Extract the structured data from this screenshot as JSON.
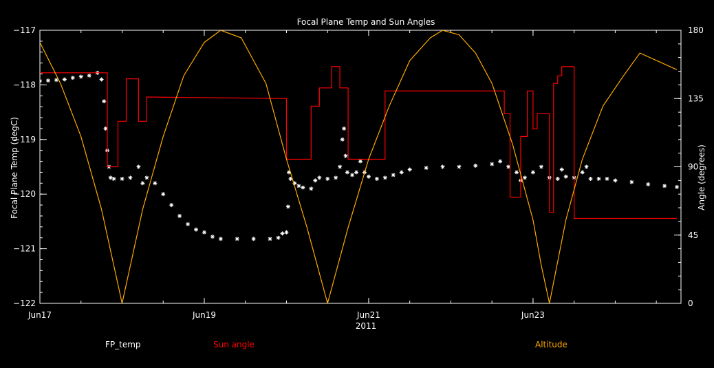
{
  "chart_data": {
    "type": "scatter",
    "title": "Focal Plane Temp and Sun Angles",
    "xlabel": "2011",
    "ylabel": "Focal Plane Temp (degC)",
    "y2label": "Angle (degrees)",
    "xlim_days": [
      17,
      24.8
    ],
    "ylim": [
      -122,
      -117
    ],
    "y2lim": [
      0,
      180
    ],
    "x_ticks": [
      {
        "day": 17,
        "label": "Jun17"
      },
      {
        "day": 19,
        "label": "Jun19"
      },
      {
        "day": 21,
        "label": "Jun21"
      },
      {
        "day": 23,
        "label": "Jun23"
      }
    ],
    "y_ticks": [
      -117,
      -118,
      -119,
      -120,
      -121,
      -122
    ],
    "y2_ticks": [
      180,
      135,
      90,
      45,
      0
    ],
    "colors": {
      "fp_temp": "#ffffff",
      "sun_angle": "#ff0000",
      "altitude": "#ffaa00",
      "axes": "#ffffff"
    },
    "series": [
      {
        "name": "FP_temp",
        "axis": "left",
        "marker": "asterisk",
        "points": [
          [
            17.0,
            -117.93
          ],
          [
            17.1,
            -117.92
          ],
          [
            17.2,
            -117.91
          ],
          [
            17.3,
            -117.9
          ],
          [
            17.4,
            -117.87
          ],
          [
            17.5,
            -117.85
          ],
          [
            17.6,
            -117.83
          ],
          [
            17.7,
            -117.78
          ],
          [
            17.75,
            -117.9
          ],
          [
            17.78,
            -118.3
          ],
          [
            17.8,
            -118.8
          ],
          [
            17.82,
            -119.2
          ],
          [
            17.84,
            -119.5
          ],
          [
            17.86,
            -119.7
          ],
          [
            17.9,
            -119.72
          ],
          [
            18.0,
            -119.72
          ],
          [
            18.1,
            -119.7
          ],
          [
            18.2,
            -119.5
          ],
          [
            18.25,
            -119.8
          ],
          [
            18.3,
            -119.7
          ],
          [
            18.4,
            -119.8
          ],
          [
            18.5,
            -120.0
          ],
          [
            18.6,
            -120.2
          ],
          [
            18.7,
            -120.4
          ],
          [
            18.8,
            -120.55
          ],
          [
            18.9,
            -120.65
          ],
          [
            19.0,
            -120.7
          ],
          [
            19.1,
            -120.78
          ],
          [
            19.2,
            -120.82
          ],
          [
            19.4,
            -120.82
          ],
          [
            19.6,
            -120.82
          ],
          [
            19.8,
            -120.82
          ],
          [
            19.9,
            -120.8
          ],
          [
            19.95,
            -120.72
          ],
          [
            20.0,
            -120.7
          ],
          [
            20.02,
            -120.23
          ],
          [
            20.03,
            -119.6
          ],
          [
            20.05,
            -119.72
          ],
          [
            20.1,
            -119.8
          ],
          [
            20.15,
            -119.85
          ],
          [
            20.2,
            -119.88
          ],
          [
            20.3,
            -119.9
          ],
          [
            20.35,
            -119.75
          ],
          [
            20.4,
            -119.7
          ],
          [
            20.5,
            -119.72
          ],
          [
            20.6,
            -119.7
          ],
          [
            20.65,
            -119.5
          ],
          [
            20.68,
            -119.0
          ],
          [
            20.7,
            -118.8
          ],
          [
            20.72,
            -119.3
          ],
          [
            20.74,
            -119.6
          ],
          [
            20.8,
            -119.65
          ],
          [
            20.85,
            -119.6
          ],
          [
            20.9,
            -119.4
          ],
          [
            20.95,
            -119.6
          ],
          [
            21.0,
            -119.68
          ],
          [
            21.1,
            -119.72
          ],
          [
            21.2,
            -119.7
          ],
          [
            21.3,
            -119.65
          ],
          [
            21.4,
            -119.6
          ],
          [
            21.5,
            -119.55
          ],
          [
            21.7,
            -119.52
          ],
          [
            21.9,
            -119.5
          ],
          [
            22.1,
            -119.5
          ],
          [
            22.3,
            -119.48
          ],
          [
            22.5,
            -119.45
          ],
          [
            22.6,
            -119.4
          ],
          [
            22.7,
            -119.5
          ],
          [
            22.8,
            -119.6
          ],
          [
            22.85,
            -119.75
          ],
          [
            22.9,
            -119.7
          ],
          [
            23.0,
            -119.6
          ],
          [
            23.1,
            -119.5
          ],
          [
            23.2,
            -119.7
          ],
          [
            23.3,
            -119.72
          ],
          [
            23.35,
            -119.55
          ],
          [
            23.4,
            -119.68
          ],
          [
            23.5,
            -119.7
          ],
          [
            23.6,
            -119.6
          ],
          [
            23.65,
            -119.5
          ],
          [
            23.7,
            -119.72
          ],
          [
            23.8,
            -119.72
          ],
          [
            23.9,
            -119.72
          ],
          [
            24.0,
            -119.75
          ],
          [
            24.2,
            -119.78
          ],
          [
            24.4,
            -119.82
          ],
          [
            24.6,
            -119.85
          ],
          [
            24.75,
            -119.87
          ]
        ]
      },
      {
        "name": "Sun angle",
        "axis": "right",
        "marker": "step",
        "points": [
          [
            17.0,
            152
          ],
          [
            17.75,
            152
          ],
          [
            17.75,
            152
          ],
          [
            17.82,
            152
          ],
          [
            17.82,
            90
          ],
          [
            17.95,
            90
          ],
          [
            17.95,
            120
          ],
          [
            18.05,
            120
          ],
          [
            18.05,
            148
          ],
          [
            18.2,
            148
          ],
          [
            18.2,
            120
          ],
          [
            18.3,
            120
          ],
          [
            18.3,
            136
          ],
          [
            20.0,
            135
          ],
          [
            20.0,
            95
          ],
          [
            20.3,
            95
          ],
          [
            20.3,
            130
          ],
          [
            20.4,
            130
          ],
          [
            20.4,
            142
          ],
          [
            20.55,
            142
          ],
          [
            20.55,
            156
          ],
          [
            20.65,
            156
          ],
          [
            20.65,
            142
          ],
          [
            20.75,
            142
          ],
          [
            20.75,
            95
          ],
          [
            21.2,
            95
          ],
          [
            21.2,
            140
          ],
          [
            22.65,
            140
          ],
          [
            22.65,
            125
          ],
          [
            22.72,
            125
          ],
          [
            22.72,
            70
          ],
          [
            22.85,
            70
          ],
          [
            22.85,
            110
          ],
          [
            22.93,
            110
          ],
          [
            22.93,
            140
          ],
          [
            23.0,
            140
          ],
          [
            23.0,
            115
          ],
          [
            23.05,
            115
          ],
          [
            23.05,
            125
          ],
          [
            23.2,
            125
          ],
          [
            23.2,
            60
          ],
          [
            23.25,
            60
          ],
          [
            23.25,
            145
          ],
          [
            23.3,
            145
          ],
          [
            23.3,
            150
          ],
          [
            23.35,
            150
          ],
          [
            23.35,
            156
          ],
          [
            23.5,
            156
          ],
          [
            23.5,
            56
          ],
          [
            24.75,
            56
          ]
        ]
      },
      {
        "name": "Altitude",
        "axis": "right",
        "marker": "line",
        "points": [
          [
            17.0,
            172
          ],
          [
            17.25,
            145
          ],
          [
            17.5,
            110
          ],
          [
            17.75,
            62
          ],
          [
            18.0,
            0
          ],
          [
            18.25,
            62
          ],
          [
            18.5,
            110
          ],
          [
            18.75,
            150
          ],
          [
            19.0,
            172
          ],
          [
            19.2,
            180
          ],
          [
            19.45,
            175
          ],
          [
            19.75,
            145
          ],
          [
            20.0,
            95
          ],
          [
            20.25,
            50
          ],
          [
            20.5,
            0
          ],
          [
            20.75,
            50
          ],
          [
            21.0,
            95
          ],
          [
            21.25,
            130
          ],
          [
            21.5,
            160
          ],
          [
            21.75,
            175
          ],
          [
            21.9,
            180
          ],
          [
            22.1,
            177
          ],
          [
            22.3,
            165
          ],
          [
            22.5,
            145
          ],
          [
            22.75,
            105
          ],
          [
            23.0,
            55
          ],
          [
            23.1,
            25
          ],
          [
            23.2,
            0
          ],
          [
            23.4,
            55
          ],
          [
            23.6,
            95
          ],
          [
            23.85,
            130
          ],
          [
            24.1,
            150
          ],
          [
            24.3,
            165
          ],
          [
            24.75,
            154
          ]
        ]
      }
    ]
  }
}
